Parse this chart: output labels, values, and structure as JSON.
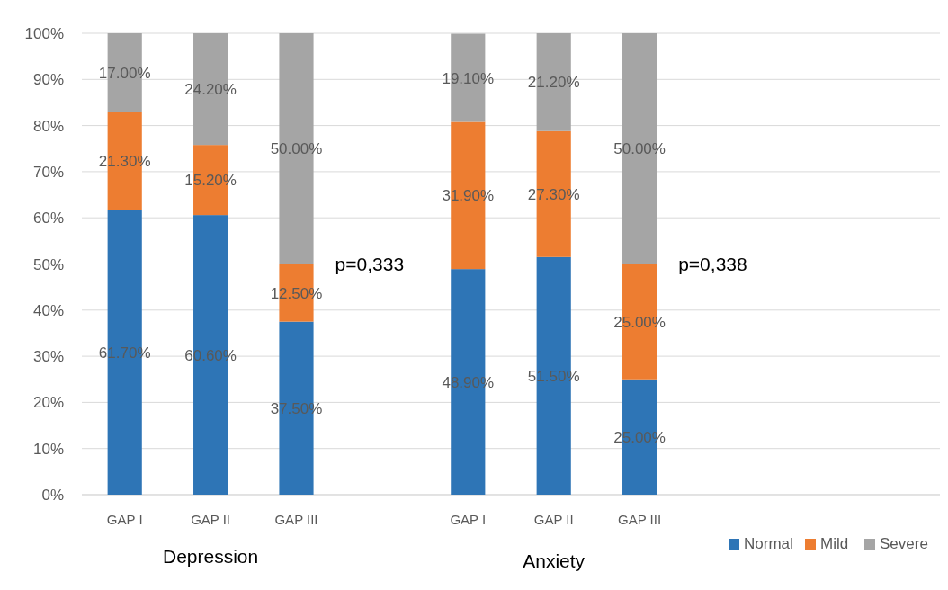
{
  "chart_data": {
    "type": "bar",
    "stacked": true,
    "categories": [
      "GAP I",
      "GAP II",
      "GAP III",
      null,
      "GAP I",
      "GAP II",
      "GAP III",
      null,
      null,
      null
    ],
    "series": [
      {
        "name": "Normal",
        "color": "#2e75b6",
        "values": [
          61.7,
          60.6,
          37.5,
          null,
          48.9,
          51.5,
          25.0,
          null,
          null,
          null
        ],
        "value_labels": [
          "61.70%",
          "60.60%",
          "37.50%",
          null,
          "48.90%",
          "51.50%",
          "25.00%",
          null,
          null,
          null
        ]
      },
      {
        "name": "Mild",
        "color": "#ed7d31",
        "values": [
          21.3,
          15.2,
          12.5,
          null,
          31.9,
          27.3,
          25.0,
          null,
          null,
          null
        ],
        "value_labels": [
          "21.30%",
          "15.20%",
          "12.50%",
          null,
          "31.90%",
          "27.30%",
          "25.00%",
          null,
          null,
          null
        ]
      },
      {
        "name": "Severe",
        "color": "#a5a5a5",
        "values": [
          17.0,
          24.2,
          50.0,
          null,
          19.1,
          21.2,
          50.0,
          null,
          null,
          null
        ],
        "value_labels": [
          "17.00%",
          "24.20%",
          "50.00%",
          null,
          "19.10%",
          "21.20%",
          "50.00%",
          null,
          null,
          null
        ]
      }
    ],
    "ylim": [
      0,
      100
    ],
    "yticks": [
      {
        "value": 0,
        "label": "0%"
      },
      {
        "value": 10,
        "label": "10%"
      },
      {
        "value": 20,
        "label": "20%"
      },
      {
        "value": 30,
        "label": "30%"
      },
      {
        "value": 40,
        "label": "40%"
      },
      {
        "value": 50,
        "label": "50%"
      },
      {
        "value": 60,
        "label": "60%"
      },
      {
        "value": 70,
        "label": "70%"
      },
      {
        "value": 80,
        "label": "80%"
      },
      {
        "value": 90,
        "label": "90%"
      },
      {
        "value": 100,
        "label": "100%"
      }
    ],
    "grid": "y",
    "legend": "bottom right",
    "annotations": [
      "p=0,333",
      "p=0,338",
      "Depression",
      "Anxiety"
    ]
  }
}
